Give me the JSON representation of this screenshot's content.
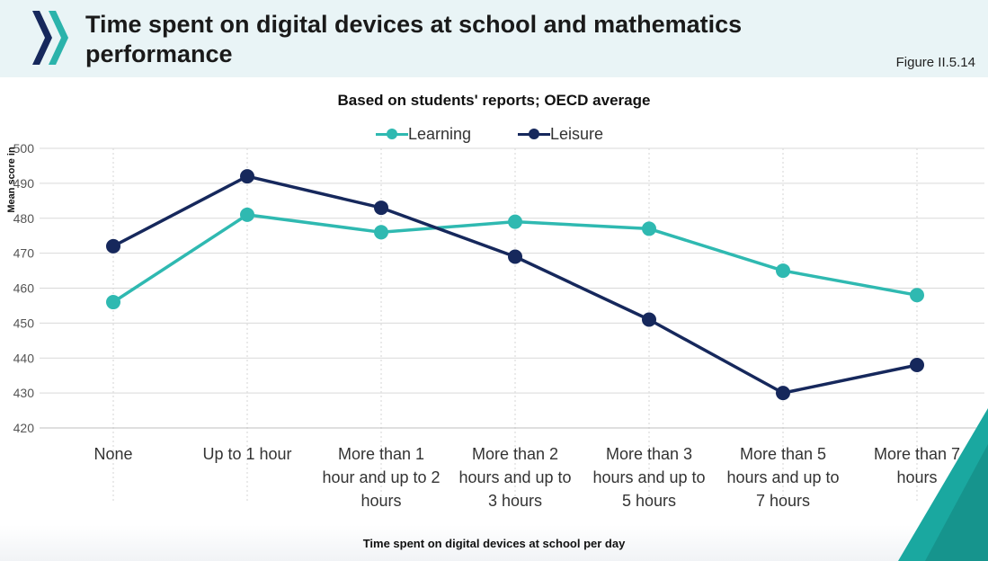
{
  "header": {
    "title": "Time spent on digital devices at school and mathematics performance",
    "figure_label": "Figure II.5.14",
    "logo_icon": "chevron-logo-icon"
  },
  "colors": {
    "learning": "#2fb9b1",
    "leisure": "#16285c",
    "header_bg": "#e9f4f6",
    "accent": "#1aa8a0"
  },
  "chart_data": {
    "type": "line",
    "title": "Based on students' reports; OECD average",
    "xlabel": "Time spent on digital devices at school per day",
    "ylabel": "Mean score in",
    "ylim": [
      420,
      500
    ],
    "yticks": [
      420,
      430,
      440,
      450,
      460,
      470,
      480,
      490,
      500
    ],
    "ytick_labels": [
      "420",
      "430",
      "440",
      "450",
      "460",
      "470",
      "480",
      "490",
      "500"
    ],
    "grid": true,
    "legend": "top-center",
    "categories": [
      [
        "None"
      ],
      [
        "Up to 1 hour"
      ],
      [
        "More than 1",
        "hour and up to 2",
        "hours"
      ],
      [
        "More than 2",
        "hours and up to",
        "3 hours"
      ],
      [
        "More than 3",
        "hours and up to",
        "5 hours"
      ],
      [
        "More than 5",
        "hours and up to",
        "7 hours"
      ],
      [
        "More than 7",
        "hours"
      ]
    ],
    "series": [
      {
        "name": "Learning",
        "values": [
          456,
          481,
          476,
          479,
          477,
          465,
          458
        ]
      },
      {
        "name": "Leisure",
        "values": [
          472,
          492,
          483,
          469,
          451,
          430,
          438
        ]
      }
    ]
  }
}
